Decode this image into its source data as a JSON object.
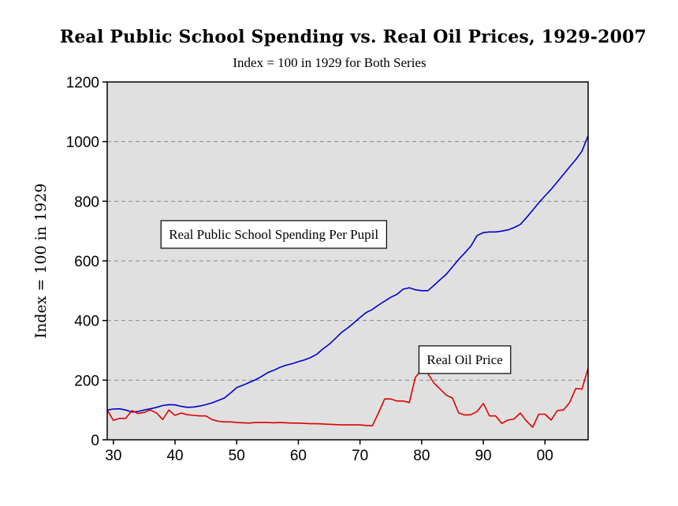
{
  "chart_data": {
    "type": "line",
    "title": "Real Public School Spending vs. Real Oil Prices, 1929-2007",
    "subtitle": "Index = 100 in 1929 for Both Series",
    "xlabel": "",
    "ylabel": "Index = 100 in 1929",
    "xlim": [
      1929,
      2007
    ],
    "ylim": [
      0,
      1200
    ],
    "yticks": [
      0,
      200,
      400,
      600,
      800,
      1000,
      1200
    ],
    "xticks": [
      {
        "value": 1930,
        "label": "30"
      },
      {
        "value": 1940,
        "label": "40"
      },
      {
        "value": 1950,
        "label": "50"
      },
      {
        "value": 1960,
        "label": "60"
      },
      {
        "value": 1970,
        "label": "70"
      },
      {
        "value": 1980,
        "label": "80"
      },
      {
        "value": 1990,
        "label": "90"
      },
      {
        "value": 2000,
        "label": "00"
      }
    ],
    "grid": "horizontal dashed",
    "colors": {
      "plot_background": "#e0e0e0",
      "spending": "#0000cc",
      "oil": "#dd0000"
    },
    "series": [
      {
        "name": "Real Public School Spending Per Pupil",
        "label": "Real Public School Spending Per Pupil",
        "color": "#0000cc",
        "x": [
          1929,
          1930,
          1931,
          1932,
          1933,
          1934,
          1935,
          1936,
          1937,
          1938,
          1939,
          1940,
          1941,
          1942,
          1943,
          1944,
          1945,
          1946,
          1947,
          1948,
          1949,
          1950,
          1951,
          1952,
          1953,
          1954,
          1955,
          1956,
          1957,
          1958,
          1959,
          1960,
          1961,
          1962,
          1963,
          1964,
          1965,
          1966,
          1967,
          1968,
          1969,
          1970,
          1971,
          1972,
          1973,
          1974,
          1975,
          1976,
          1977,
          1978,
          1979,
          1980,
          1981,
          1982,
          1983,
          1984,
          1985,
          1986,
          1987,
          1988,
          1989,
          1990,
          1991,
          1992,
          1993,
          1994,
          1995,
          1996,
          1997,
          1998,
          1999,
          2000,
          2001,
          2002,
          2003,
          2004,
          2005,
          2006,
          2007
        ],
        "values": [
          100,
          103,
          104,
          100,
          93,
          95,
          100,
          104,
          109,
          115,
          118,
          117,
          112,
          109,
          110,
          113,
          118,
          124,
          132,
          140,
          157,
          175,
          183,
          192,
          201,
          212,
          225,
          233,
          243,
          250,
          255,
          262,
          268,
          276,
          287,
          305,
          320,
          340,
          360,
          375,
          392,
          410,
          427,
          437,
          452,
          465,
          478,
          488,
          505,
          510,
          503,
          500,
          500,
          518,
          537,
          555,
          580,
          605,
          627,
          650,
          685,
          695,
          697,
          697,
          700,
          704,
          712,
          722,
          745,
          770,
          795,
          818,
          840,
          865,
          890,
          915,
          940,
          968,
          1020
        ]
      },
      {
        "name": "Real Oil Price",
        "label": "Real Oil Price",
        "color": "#dd0000",
        "x": [
          1929,
          1930,
          1931,
          1932,
          1933,
          1934,
          1935,
          1936,
          1937,
          1938,
          1939,
          1940,
          1941,
          1942,
          1943,
          1944,
          1945,
          1946,
          1947,
          1948,
          1949,
          1950,
          1951,
          1952,
          1953,
          1954,
          1955,
          1956,
          1957,
          1958,
          1959,
          1960,
          1961,
          1962,
          1963,
          1964,
          1965,
          1966,
          1967,
          1968,
          1969,
          1970,
          1971,
          1972,
          1973,
          1974,
          1975,
          1976,
          1977,
          1978,
          1979,
          1980,
          1981,
          1982,
          1983,
          1984,
          1985,
          1986,
          1987,
          1988,
          1989,
          1990,
          1991,
          1992,
          1993,
          1994,
          1995,
          1996,
          1997,
          1998,
          1999,
          2000,
          2001,
          2002,
          2003,
          2004,
          2005,
          2006,
          2007
        ],
        "values": [
          100,
          65,
          72,
          72,
          98,
          88,
          92,
          100,
          90,
          68,
          100,
          82,
          90,
          84,
          82,
          80,
          80,
          68,
          62,
          60,
          60,
          58,
          57,
          56,
          58,
          58,
          58,
          57,
          58,
          57,
          56,
          56,
          55,
          54,
          54,
          53,
          52,
          51,
          50,
          50,
          50,
          50,
          48,
          47,
          90,
          137,
          137,
          130,
          130,
          125,
          210,
          235,
          222,
          190,
          170,
          150,
          140,
          90,
          83,
          84,
          95,
          122,
          80,
          80,
          55,
          66,
          70,
          90,
          63,
          42,
          86,
          86,
          66,
          98,
          100,
          125,
          172,
          170,
          240
        ]
      }
    ],
    "annotations": [
      {
        "text": "Real Public School Spending Per Pupil",
        "x": 1956,
        "y": 690
      },
      {
        "text": "Real Oil Price",
        "x": 1987,
        "y": 270
      }
    ]
  }
}
